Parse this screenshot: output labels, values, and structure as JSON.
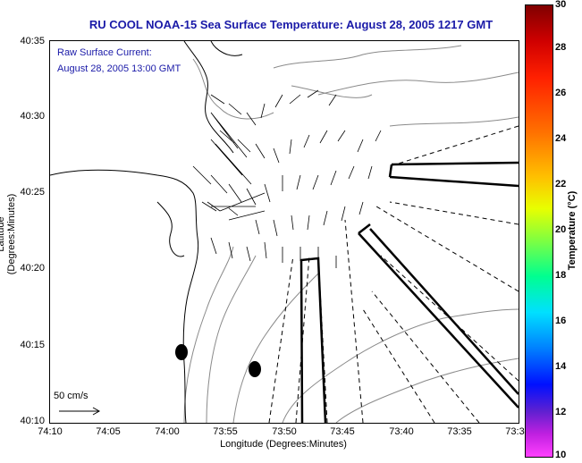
{
  "title": "RU COOL  NOAA-15  Sea Surface Temperature:  August 28, 2005 1217 GMT",
  "overlay": {
    "line1": "Raw Surface Current:",
    "line2": "August 28, 2005 13:00 GMT"
  },
  "y_axis": {
    "label": "Latitude (Degrees:Minutes)",
    "ticks": [
      "40:35",
      "40:30",
      "40:25",
      "40:20",
      "40:15",
      "40:10"
    ]
  },
  "x_axis": {
    "label": "Longitude (Degrees:Minutes)",
    "ticks": [
      "74:10",
      "74:05",
      "74:00",
      "73:55",
      "73:50",
      "73:45",
      "73:40",
      "73:35",
      "73:3"
    ]
  },
  "colorbar": {
    "label": "Temperature (°C)",
    "ticks": [
      "30",
      "28",
      "26",
      "24",
      "22",
      "20",
      "18",
      "16",
      "14",
      "12",
      "10"
    ]
  },
  "scale_arrow_label": "50 cm/s",
  "colors": {
    "title": "#1a1aa8",
    "coast": "#000000",
    "depth": "#888888"
  }
}
